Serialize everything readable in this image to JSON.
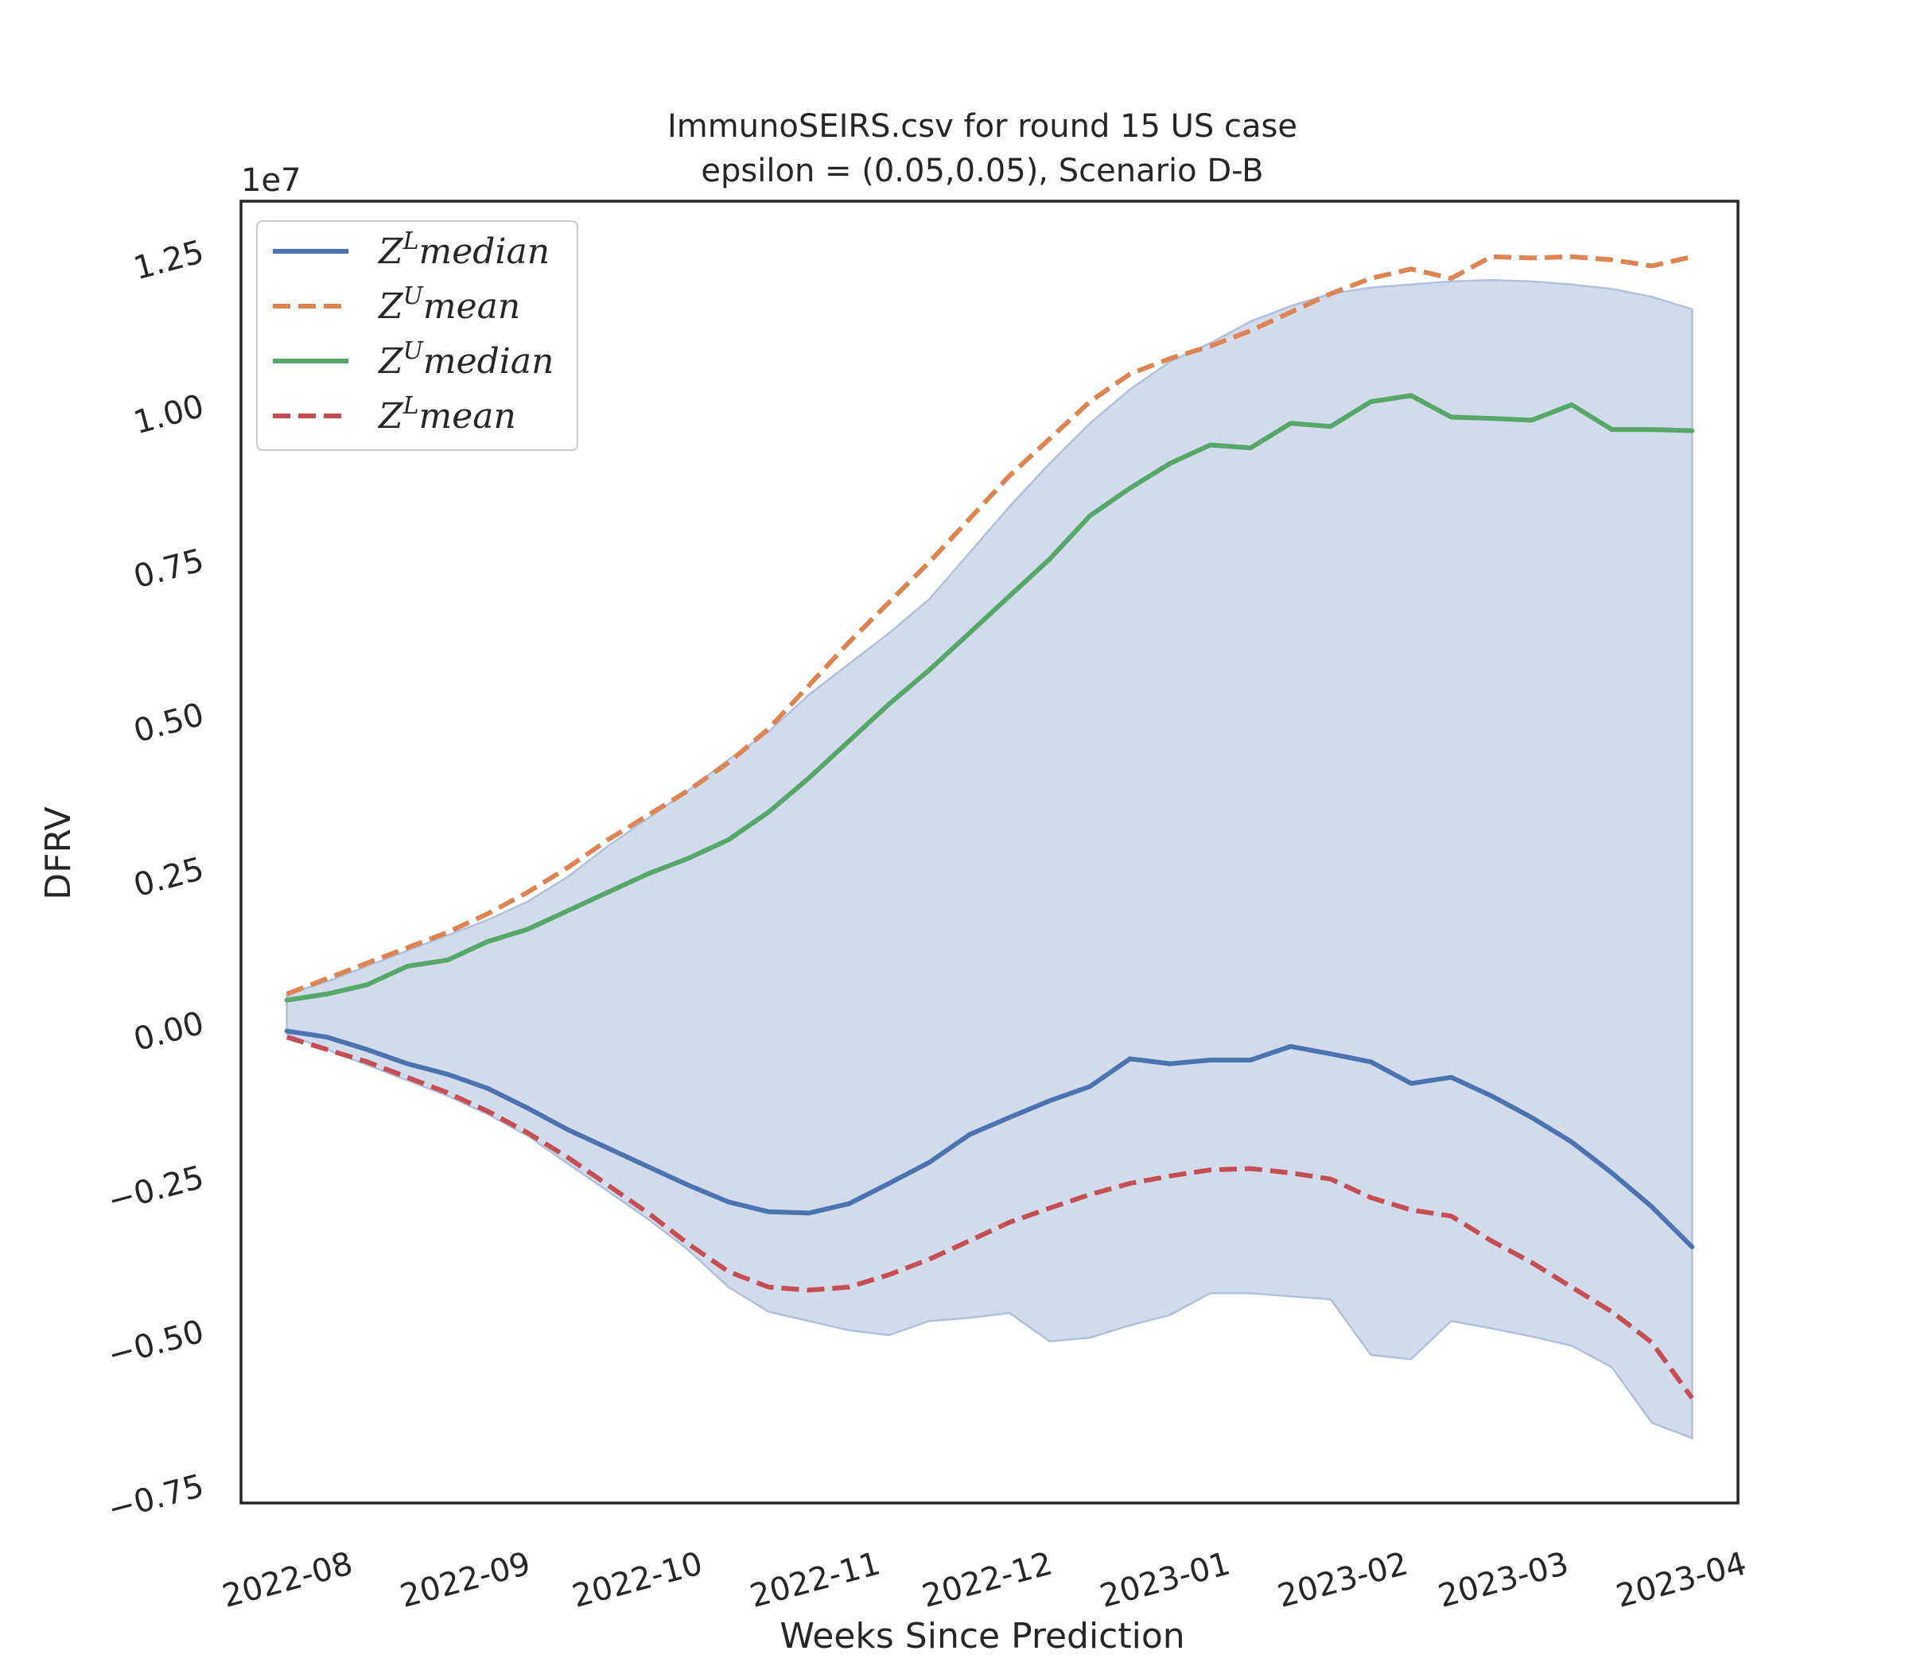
{
  "chart_data": {
    "type": "line",
    "title_line1": "ImmunoSEIRS.csv for round 15 US  case",
    "title_line2": "epsilon = (0.05,0.05), Scenario D-B",
    "xlabel": "Weeks Since Prediction",
    "ylabel": "DFRV",
    "y_multiplier": "1e7",
    "ylim": [
      -0.78,
      1.33
    ],
    "xlim": [
      "2022-07-15",
      "2023-04-02"
    ],
    "grid": false,
    "legend_position": "top-left",
    "x_ticks": [
      "2022-08",
      "2022-09",
      "2022-10",
      "2022-11",
      "2022-12",
      "2023-01",
      "2023-02",
      "2023-03",
      "2023-04"
    ],
    "y_ticks": [
      "−0.75",
      "−0.50",
      "−0.25",
      "0.00",
      "0.25",
      "0.50",
      "0.75",
      "1.00",
      "1.25"
    ],
    "y_tick_values": [
      -0.75,
      -0.5,
      -0.25,
      0.0,
      0.25,
      0.5,
      0.75,
      1.0,
      1.25
    ],
    "x": [
      "2022-07-23",
      "2022-07-30",
      "2022-08-06",
      "2022-08-13",
      "2022-08-20",
      "2022-08-27",
      "2022-09-03",
      "2022-09-10",
      "2022-09-17",
      "2022-09-24",
      "2022-10-01",
      "2022-10-08",
      "2022-10-15",
      "2022-10-22",
      "2022-10-29",
      "2022-11-05",
      "2022-11-12",
      "2022-11-19",
      "2022-11-26",
      "2022-12-03",
      "2022-12-10",
      "2022-12-17",
      "2022-12-24",
      "2022-12-31",
      "2023-01-07",
      "2023-01-14",
      "2023-01-21",
      "2023-01-28",
      "2023-02-04",
      "2023-02-11",
      "2023-02-18",
      "2023-02-25",
      "2023-03-04",
      "2023-03-11",
      "2023-03-18",
      "2023-03-25"
    ],
    "series": [
      {
        "name": "Z^L median",
        "legend_base": "Z",
        "legend_sup": "L",
        "legend_rest": "median",
        "color": "#4c72b0",
        "dash": "solid",
        "values": [
          -0.015,
          -0.025,
          -0.045,
          -0.068,
          -0.085,
          -0.108,
          -0.14,
          -0.175,
          -0.205,
          -0.235,
          -0.265,
          -0.292,
          -0.308,
          -0.31,
          -0.295,
          -0.262,
          -0.228,
          -0.183,
          -0.155,
          -0.128,
          -0.105,
          -0.06,
          -0.068,
          -0.062,
          -0.062,
          -0.04,
          -0.052,
          -0.065,
          -0.1,
          -0.09,
          -0.12,
          -0.155,
          -0.195,
          -0.245,
          -0.3,
          -0.365
        ]
      },
      {
        "name": "Z^U mean",
        "legend_base": "Z",
        "legend_sup": "U",
        "legend_rest": "mean",
        "color": "#dd8452",
        "dash": "dashed",
        "values": [
          0.045,
          0.07,
          0.095,
          0.12,
          0.145,
          0.175,
          0.21,
          0.25,
          0.295,
          0.335,
          0.375,
          0.42,
          0.475,
          0.545,
          0.615,
          0.68,
          0.745,
          0.815,
          0.885,
          0.945,
          1.005,
          1.05,
          1.075,
          1.095,
          1.12,
          1.15,
          1.18,
          1.205,
          1.22,
          1.205,
          1.24,
          1.238,
          1.24,
          1.235,
          1.225,
          1.24
        ]
      },
      {
        "name": "Z^U median",
        "legend_base": "Z",
        "legend_sup": "U",
        "legend_rest": "median",
        "color": "#55a868",
        "dash": "solid",
        "values": [
          0.035,
          0.045,
          0.06,
          0.09,
          0.1,
          0.13,
          0.15,
          0.18,
          0.21,
          0.24,
          0.265,
          0.295,
          0.34,
          0.395,
          0.455,
          0.515,
          0.57,
          0.63,
          0.69,
          0.75,
          0.82,
          0.865,
          0.905,
          0.935,
          0.93,
          0.97,
          0.965,
          1.005,
          1.015,
          0.98,
          0.978,
          0.975,
          1.0,
          0.96,
          0.96,
          0.958
        ]
      },
      {
        "name": "Z^L mean",
        "legend_base": "Z",
        "legend_sup": "L",
        "legend_rest": "mean",
        "color": "#c44e52",
        "dash": "dashed",
        "values": [
          -0.025,
          -0.045,
          -0.065,
          -0.09,
          -0.115,
          -0.145,
          -0.18,
          -0.22,
          -0.265,
          -0.31,
          -0.36,
          -0.405,
          -0.43,
          -0.435,
          -0.43,
          -0.41,
          -0.385,
          -0.355,
          -0.325,
          -0.302,
          -0.28,
          -0.262,
          -0.25,
          -0.24,
          -0.238,
          -0.245,
          -0.255,
          -0.285,
          -0.305,
          -0.315,
          -0.355,
          -0.39,
          -0.43,
          -0.47,
          -0.52,
          -0.61
        ]
      }
    ],
    "band": {
      "color": "#d2dbeb",
      "edge_color": "#b0c0dd",
      "upper": [
        0.045,
        0.065,
        0.09,
        0.115,
        0.14,
        0.165,
        0.195,
        0.235,
        0.285,
        0.33,
        0.375,
        0.425,
        0.47,
        0.53,
        0.58,
        0.63,
        0.685,
        0.76,
        0.835,
        0.905,
        0.97,
        1.025,
        1.07,
        1.1,
        1.135,
        1.16,
        1.18,
        1.19,
        1.195,
        1.2,
        1.202,
        1.2,
        1.195,
        1.188,
        1.175,
        1.155
      ],
      "lower": [
        -0.02,
        -0.045,
        -0.07,
        -0.095,
        -0.12,
        -0.15,
        -0.185,
        -0.23,
        -0.275,
        -0.32,
        -0.37,
        -0.43,
        -0.47,
        -0.485,
        -0.5,
        -0.508,
        -0.485,
        -0.48,
        -0.472,
        -0.518,
        -0.512,
        -0.492,
        -0.475,
        -0.44,
        -0.44,
        -0.445,
        -0.45,
        -0.54,
        -0.547,
        -0.485,
        -0.497,
        -0.51,
        -0.525,
        -0.56,
        -0.65,
        -0.675
      ]
    }
  }
}
